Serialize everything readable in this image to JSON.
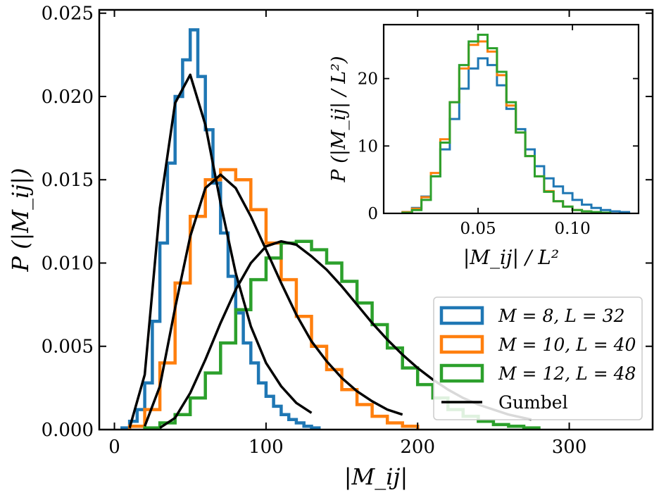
{
  "chart_data": [
    {
      "type": "line",
      "subtype": "step-histogram",
      "title": "",
      "xlabel": "|M_ij|",
      "ylabel": "P (|M_ij|)",
      "xlim": [
        -10,
        355
      ],
      "ylim": [
        0,
        0.0252
      ],
      "xticks": [
        0,
        100,
        200,
        300
      ],
      "xtick_labels": [
        "0",
        "100",
        "200",
        "300"
      ],
      "yticks": [
        0,
        0.005,
        0.01,
        0.015,
        0.02,
        0.025
      ],
      "ytick_labels": [
        "0.000",
        "0.005",
        "0.010",
        "0.015",
        "0.020",
        "0.025"
      ],
      "grid": false,
      "legend_position": "lower-right",
      "legend": [
        {
          "label": "M = 8, L = 32",
          "color": "#1f77b4",
          "kind": "box"
        },
        {
          "label": "M = 10, L = 40",
          "color": "#ff7f0e",
          "kind": "box"
        },
        {
          "label": "M = 12, L = 48",
          "color": "#2ca02c",
          "kind": "box"
        },
        {
          "label": "Gumbel",
          "color": "#000000",
          "kind": "line"
        }
      ],
      "series": [
        {
          "name": "M = 8, L = 32",
          "kind": "step",
          "color": "#1f77b4",
          "x": [
            5,
            10,
            15,
            20,
            25,
            30,
            35,
            40,
            45,
            50,
            55,
            60,
            65,
            70,
            75,
            80,
            85,
            90,
            95,
            100,
            105,
            110,
            115,
            120,
            125,
            130
          ],
          "y": [
            0.0001,
            0.0005,
            0.0012,
            0.0028,
            0.0065,
            0.0112,
            0.016,
            0.02,
            0.0222,
            0.024,
            0.0212,
            0.018,
            0.0148,
            0.0118,
            0.0092,
            0.007,
            0.0052,
            0.004,
            0.0028,
            0.002,
            0.0014,
            0.0009,
            0.0006,
            0.0004,
            0.0002,
            0.0001
          ]
        },
        {
          "name": "M = 10, L = 40",
          "kind": "step",
          "color": "#ff7f0e",
          "x": [
            10,
            20,
            30,
            40,
            50,
            60,
            70,
            80,
            90,
            100,
            110,
            120,
            130,
            140,
            150,
            160,
            170,
            180,
            190
          ],
          "y": [
            0.0002,
            0.0012,
            0.004,
            0.0088,
            0.0128,
            0.015,
            0.0156,
            0.015,
            0.0132,
            0.0112,
            0.009,
            0.0068,
            0.005,
            0.0036,
            0.0024,
            0.0015,
            0.0008,
            0.0004,
            0.0002
          ]
        },
        {
          "name": "M = 12, L = 48",
          "kind": "step",
          "color": "#2ca02c",
          "x": [
            20,
            30,
            40,
            50,
            60,
            70,
            80,
            90,
            100,
            110,
            120,
            130,
            140,
            150,
            160,
            170,
            180,
            190,
            200,
            210,
            220,
            230,
            240,
            250,
            260,
            270
          ],
          "y": [
            0.0001,
            0.0004,
            0.0009,
            0.0019,
            0.0034,
            0.0052,
            0.0072,
            0.009,
            0.0103,
            0.0112,
            0.0113,
            0.0108,
            0.01,
            0.0089,
            0.0076,
            0.0063,
            0.0049,
            0.0037,
            0.0027,
            0.0019,
            0.0012,
            0.0008,
            0.0005,
            0.0003,
            0.0002,
            0.0001
          ]
        },
        {
          "name": "Gumbel",
          "kind": "line",
          "color": "#000000",
          "curves": [
            {
              "x": [
                10,
                20,
                30,
                40,
                50,
                60,
                70,
                80,
                90,
                100,
                110,
                120,
                130
              ],
              "y": [
                0.0001,
                0.0033,
                0.0133,
                0.0196,
                0.0213,
                0.0183,
                0.0136,
                0.0094,
                0.0062,
                0.004,
                0.0026,
                0.0016,
                0.001
              ]
            },
            {
              "x": [
                20,
                30,
                40,
                50,
                60,
                70,
                80,
                90,
                100,
                110,
                120,
                130,
                140,
                150,
                160,
                170,
                180,
                190
              ],
              "y": [
                0.0002,
                0.0026,
                0.0073,
                0.0116,
                0.0145,
                0.0153,
                0.0145,
                0.0128,
                0.0108,
                0.0088,
                0.0069,
                0.0053,
                0.0041,
                0.0031,
                0.0023,
                0.0017,
                0.0012,
                0.0009
              ]
            },
            {
              "x": [
                30,
                40,
                50,
                60,
                70,
                80,
                90,
                100,
                110,
                120,
                130,
                140,
                150,
                160,
                170,
                180,
                190,
                200,
                210,
                220,
                230,
                240,
                250,
                260,
                275
              ],
              "y": [
                0.0001,
                0.0007,
                0.0022,
                0.0042,
                0.0064,
                0.0084,
                0.01,
                0.011,
                0.0113,
                0.0111,
                0.0104,
                0.0096,
                0.0086,
                0.0075,
                0.0064,
                0.0054,
                0.0045,
                0.0037,
                0.003,
                0.0024,
                0.0019,
                0.0015,
                0.0012,
                0.0009,
                0.0006
              ]
            }
          ]
        }
      ]
    },
    {
      "type": "line",
      "subtype": "step-histogram",
      "placement": "inset-top-right",
      "title": "",
      "xlabel": "|M_ij| / L²",
      "ylabel": "P (|M_ij| / L²)",
      "xlim": [
        0.0,
        0.135
      ],
      "ylim": [
        0,
        28
      ],
      "xticks": [
        0.05,
        0.1
      ],
      "xtick_labels": [
        "0.05",
        "0.10"
      ],
      "yticks": [
        0,
        10,
        20
      ],
      "ytick_labels": [
        "0",
        "10",
        "20"
      ],
      "grid": false,
      "series": [
        {
          "name": "M = 8, L = 32",
          "color": "#1f77b4",
          "x": [
            0.01,
            0.015,
            0.02,
            0.025,
            0.03,
            0.035,
            0.04,
            0.045,
            0.05,
            0.055,
            0.06,
            0.065,
            0.07,
            0.075,
            0.08,
            0.085,
            0.09,
            0.095,
            0.1,
            0.105,
            0.11,
            0.115,
            0.12,
            0.125
          ],
          "y": [
            0.2,
            0.8,
            2.5,
            5.5,
            9.5,
            14.0,
            18.5,
            21.5,
            23.0,
            22.0,
            19.0,
            15.5,
            12.5,
            9.5,
            7.0,
            5.2,
            4.0,
            3.0,
            2.0,
            1.3,
            0.8,
            0.5,
            0.3,
            0.2
          ]
        },
        {
          "name": "M = 10, L = 40",
          "color": "#ff7f0e",
          "x": [
            0.01,
            0.015,
            0.02,
            0.025,
            0.03,
            0.035,
            0.04,
            0.045,
            0.05,
            0.055,
            0.06,
            0.065,
            0.07,
            0.075,
            0.08,
            0.085,
            0.09,
            0.095,
            0.1,
            0.105,
            0.11
          ],
          "y": [
            0.2,
            0.7,
            2.4,
            6.0,
            11.0,
            16.5,
            21.5,
            25.0,
            25.5,
            24.0,
            20.5,
            16.0,
            12.0,
            8.5,
            5.5,
            3.3,
            1.8,
            1.0,
            0.5,
            0.3,
            0.1
          ]
        },
        {
          "name": "M = 12, L = 48",
          "color": "#2ca02c",
          "x": [
            0.01,
            0.015,
            0.02,
            0.025,
            0.03,
            0.035,
            0.04,
            0.045,
            0.05,
            0.055,
            0.06,
            0.065,
            0.07,
            0.075,
            0.08,
            0.085,
            0.09,
            0.095,
            0.1,
            0.105,
            0.11,
            0.115
          ],
          "y": [
            0.1,
            0.5,
            2.0,
            5.5,
            10.5,
            16.5,
            22.0,
            25.5,
            26.5,
            24.5,
            21.0,
            16.5,
            12.0,
            8.5,
            5.5,
            3.2,
            1.8,
            1.0,
            0.5,
            0.3,
            0.2,
            0.1
          ]
        }
      ]
    }
  ]
}
